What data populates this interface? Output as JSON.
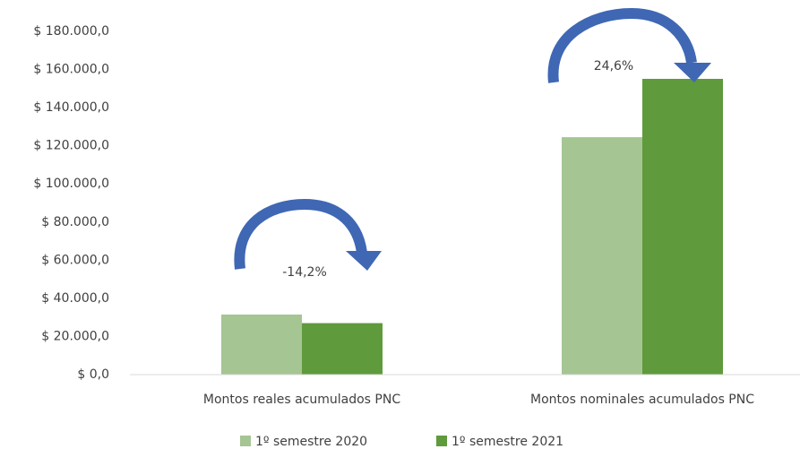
{
  "chart_data": {
    "type": "bar",
    "categories": [
      "Montos reales acumulados PNC",
      "Montos nominales acumulados PNC"
    ],
    "series": [
      {
        "name": "1º semestre 2020",
        "color": "#a5c593",
        "values": [
          31500,
          124500
        ]
      },
      {
        "name": "1º semestre 2021",
        "color": "#5f9a3c",
        "values": [
          27000,
          155100
        ]
      }
    ],
    "annotations": [
      "-14,2%",
      "24,6%"
    ],
    "ylim": [
      0,
      180000
    ],
    "yticks": [
      {
        "value": 0,
        "label": "$ 0,0"
      },
      {
        "value": 20000,
        "label": "$ 20.000,0"
      },
      {
        "value": 40000,
        "label": "$ 40.000,0"
      },
      {
        "value": 60000,
        "label": "$ 60.000,0"
      },
      {
        "value": 80000,
        "label": "$ 80.000,0"
      },
      {
        "value": 100000,
        "label": "$ 100.000,0"
      },
      {
        "value": 120000,
        "label": "$ 120.000,0"
      },
      {
        "value": 140000,
        "label": "$ 140.000,0"
      },
      {
        "value": 160000,
        "label": "$ 160.000,0"
      },
      {
        "value": 180000,
        "label": "$ 180.000,0"
      }
    ],
    "grid": false,
    "legend": "bottom"
  }
}
